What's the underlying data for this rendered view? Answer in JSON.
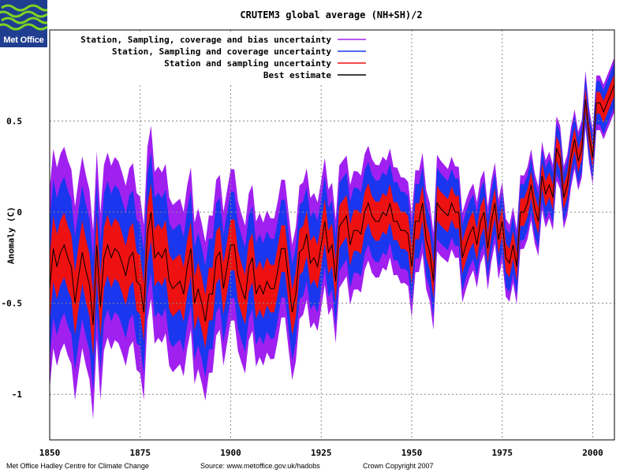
{
  "logo": {
    "text": "Met Office"
  },
  "footer": {
    "left": "Met Office Hadley Centre for Climate Change",
    "middle": "Source: www.metoffice.gov.uk/hadobs",
    "right": "Crown Copyright 2007"
  },
  "colors": {
    "outer_band": "#a020f0",
    "coverage_band": "#1a36ee",
    "sampling_band": "#ee1111",
    "best_estimate": "#000000",
    "logo_background": "#1f3e8f",
    "logo_waves": "#7ed321"
  },
  "chart_data": {
    "type": "area",
    "title": "CRUTEM3 global average (NH+SH)/2",
    "xlabel": "",
    "ylabel": "Anomaly (C)",
    "xlim": [
      1850,
      2006
    ],
    "ylim": [
      -1.25,
      1.0
    ],
    "x_ticks": [
      "1850",
      "1875",
      "1900",
      "1925",
      "1950",
      "1975",
      "2000"
    ],
    "y_ticks": [
      {
        "value": 0.5,
        "label": "0.5"
      },
      {
        "value": 0,
        "label": "0"
      },
      {
        "value": -0.5,
        "label": "-0.5"
      },
      {
        "value": -1,
        "label": "-1"
      }
    ],
    "grid": true,
    "legend_position": "top-left",
    "legend": [
      "Station, Sampling, coverage and bias uncertainty",
      "Station, Sampling and coverage uncertainty",
      "Station and sampling uncertainty",
      "Best estimate"
    ],
    "legend_colors": [
      "#a020f0",
      "#1a36ee",
      "#ee1111",
      "#000000"
    ],
    "x": [
      1850,
      1851,
      1852,
      1853,
      1854,
      1855,
      1856,
      1857,
      1858,
      1859,
      1860,
      1861,
      1862,
      1863,
      1864,
      1865,
      1866,
      1867,
      1868,
      1869,
      1870,
      1871,
      1872,
      1873,
      1874,
      1875,
      1876,
      1877,
      1878,
      1879,
      1880,
      1881,
      1882,
      1883,
      1884,
      1885,
      1886,
      1887,
      1888,
      1889,
      1890,
      1891,
      1892,
      1893,
      1894,
      1895,
      1896,
      1897,
      1898,
      1899,
      1900,
      1901,
      1902,
      1903,
      1904,
      1905,
      1906,
      1907,
      1908,
      1909,
      1910,
      1911,
      1912,
      1913,
      1914,
      1915,
      1916,
      1917,
      1918,
      1919,
      1920,
      1921,
      1922,
      1923,
      1924,
      1925,
      1926,
      1927,
      1928,
      1929,
      1930,
      1931,
      1932,
      1933,
      1934,
      1935,
      1936,
      1937,
      1938,
      1939,
      1940,
      1941,
      1942,
      1943,
      1944,
      1945,
      1946,
      1947,
      1948,
      1949,
      1950,
      1951,
      1952,
      1953,
      1954,
      1955,
      1956,
      1957,
      1958,
      1959,
      1960,
      1961,
      1962,
      1963,
      1964,
      1965,
      1966,
      1967,
      1968,
      1969,
      1970,
      1971,
      1972,
      1973,
      1974,
      1975,
      1976,
      1977,
      1978,
      1979,
      1980,
      1981,
      1982,
      1983,
      1984,
      1985,
      1986,
      1987,
      1988,
      1989,
      1990,
      1991,
      1992,
      1993,
      1994,
      1995,
      1996,
      1997,
      1998,
      1999,
      2000,
      2001,
      2002,
      2003,
      2004,
      2005,
      2006
    ],
    "best_estimate": [
      -0.42,
      -0.2,
      -0.3,
      -0.22,
      -0.18,
      -0.25,
      -0.3,
      -0.5,
      -0.35,
      -0.22,
      -0.32,
      -0.4,
      -0.62,
      -0.18,
      -0.52,
      -0.25,
      -0.18,
      -0.25,
      -0.2,
      -0.22,
      -0.28,
      -0.35,
      -0.25,
      -0.22,
      -0.38,
      -0.4,
      -0.55,
      -0.12,
      0.0,
      -0.25,
      -0.22,
      -0.25,
      -0.2,
      -0.38,
      -0.42,
      -0.4,
      -0.38,
      -0.45,
      -0.3,
      -0.2,
      -0.5,
      -0.42,
      -0.5,
      -0.6,
      -0.45,
      -0.45,
      -0.25,
      -0.22,
      -0.42,
      -0.3,
      -0.18,
      -0.18,
      -0.35,
      -0.42,
      -0.48,
      -0.3,
      -0.25,
      -0.45,
      -0.4,
      -0.45,
      -0.38,
      -0.42,
      -0.42,
      -0.32,
      -0.2,
      -0.2,
      -0.38,
      -0.55,
      -0.45,
      -0.22,
      -0.2,
      -0.12,
      -0.28,
      -0.25,
      -0.3,
      -0.18,
      -0.05,
      -0.22,
      -0.18,
      -0.38,
      -0.08,
      -0.05,
      -0.02,
      -0.18,
      -0.1,
      -0.1,
      -0.12,
      0.0,
      0.05,
      -0.02,
      -0.05,
      -0.05,
      0.0,
      -0.02,
      0.05,
      -0.05,
      -0.05,
      -0.1,
      -0.1,
      -0.12,
      -0.3,
      -0.05,
      -0.05,
      0.05,
      -0.15,
      -0.22,
      -0.38,
      0.05,
      0.02,
      0.0,
      -0.02,
      0.05,
      0.0,
      0.0,
      -0.25,
      -0.18,
      -0.12,
      -0.08,
      -0.18,
      -0.05,
      0.0,
      -0.2,
      -0.05,
      0.05,
      -0.15,
      -0.05,
      -0.25,
      -0.28,
      -0.18,
      -0.3,
      0.0,
      0.0,
      0.05,
      0.15,
      0.02,
      -0.05,
      0.2,
      0.1,
      0.15,
      0.08,
      0.35,
      0.3,
      0.08,
      0.15,
      0.3,
      0.4,
      0.28,
      0.35,
      0.62,
      0.42,
      0.3,
      0.6,
      0.6,
      0.55,
      0.6,
      0.65,
      0.7
    ]
  }
}
